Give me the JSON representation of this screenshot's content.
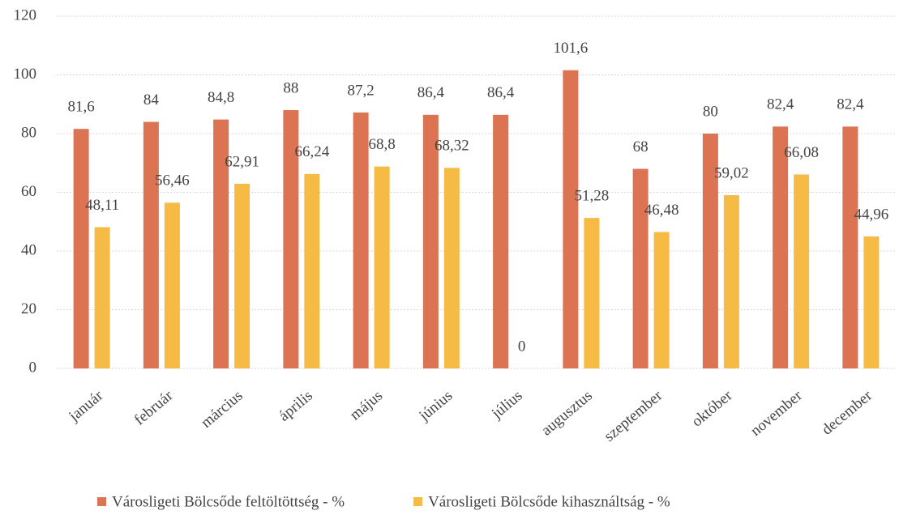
{
  "chart_data": {
    "type": "bar",
    "categories": [
      "január",
      "február",
      "március",
      "április",
      "május",
      "június",
      "július",
      "augusztus",
      "szeptember",
      "október",
      "november",
      "december"
    ],
    "series": [
      {
        "name": "Városligeti Bölcsőde feltöltöttség - %",
        "color": "#dc7352",
        "values": [
          81.6,
          84,
          84.8,
          88,
          87.2,
          86.4,
          86.4,
          101.6,
          68,
          80,
          82.4,
          82.4
        ],
        "value_labels": [
          "81,6",
          "84",
          "84,8",
          "88",
          "87,2",
          "86,4",
          "86,4",
          "101,6",
          "68",
          "80",
          "82,4",
          "82,4"
        ]
      },
      {
        "name": "Városligeti Bölcsőde kihasználtság - %",
        "color": "#f6bb45",
        "values": [
          48.11,
          56.46,
          62.91,
          66.24,
          68.8,
          68.32,
          0,
          51.28,
          46.48,
          59.02,
          66.08,
          44.96
        ],
        "value_labels": [
          "48,11",
          "56,46",
          "62,91",
          "66,24",
          "68,8",
          "68,32",
          "0",
          "51,28",
          "46,48",
          "59,02",
          "66,08",
          "44,96"
        ]
      }
    ],
    "ylim": [
      0,
      120
    ],
    "yticks": [
      0,
      20,
      40,
      60,
      80,
      100,
      120
    ],
    "grid": true,
    "legend": "bottom"
  }
}
